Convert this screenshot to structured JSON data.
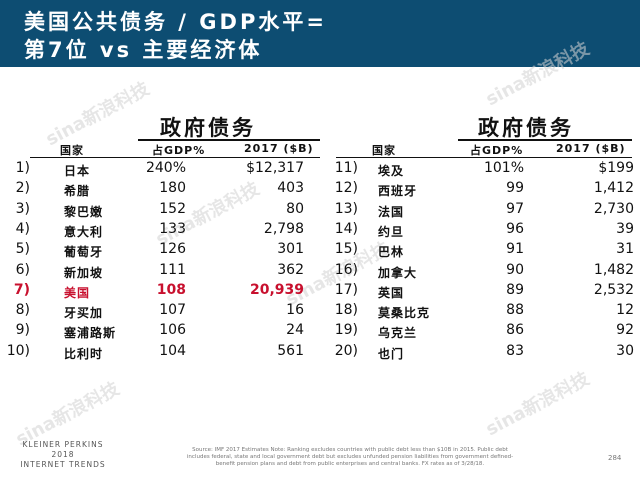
{
  "header": {
    "title_line1": "美国公共债务 / GDP水平=",
    "title_line2": "第7位 vs 主要经济体"
  },
  "section_title": "政府债务",
  "columns": {
    "country": "国家",
    "pct": "占GDP%",
    "debt": "2017 ($B)"
  },
  "left": [
    {
      "rank": "1)",
      "country": "日本",
      "pct": "240%",
      "debt": "$12,317"
    },
    {
      "rank": "2)",
      "country": "希腊",
      "pct": "180",
      "debt": "403"
    },
    {
      "rank": "3)",
      "country": "黎巴嫩",
      "pct": "152",
      "debt": "80"
    },
    {
      "rank": "4)",
      "country": "意大利",
      "pct": "133",
      "debt": "2,798"
    },
    {
      "rank": "5)",
      "country": "葡萄牙",
      "pct": "126",
      "debt": "301"
    },
    {
      "rank": "6)",
      "country": "新加坡",
      "pct": "111",
      "debt": "362"
    },
    {
      "rank": "7)",
      "country": "美国",
      "pct": "108",
      "debt": "20,939",
      "highlight": true
    },
    {
      "rank": "8)",
      "country": "牙买加",
      "pct": "107",
      "debt": "16"
    },
    {
      "rank": "9)",
      "country": "塞浦路斯",
      "pct": "106",
      "debt": "24"
    },
    {
      "rank": "10)",
      "country": "比利时",
      "pct": "104",
      "debt": "561"
    }
  ],
  "right": [
    {
      "rank": "11)",
      "country": "埃及",
      "pct": "101%",
      "debt": "$199"
    },
    {
      "rank": "12)",
      "country": "西班牙",
      "pct": "99",
      "debt": "1,412"
    },
    {
      "rank": "13)",
      "country": "法国",
      "pct": "97",
      "debt": "2,730"
    },
    {
      "rank": "14)",
      "country": "约旦",
      "pct": "96",
      "debt": "39"
    },
    {
      "rank": "15)",
      "country": "巴林",
      "pct": "91",
      "debt": "31"
    },
    {
      "rank": "16)",
      "country": "加拿大",
      "pct": "90",
      "debt": "1,482"
    },
    {
      "rank": "17)",
      "country": "英国",
      "pct": "89",
      "debt": "2,532"
    },
    {
      "rank": "18)",
      "country": "莫桑比克",
      "pct": "88",
      "debt": "12"
    },
    {
      "rank": "19)",
      "country": "乌克兰",
      "pct": "86",
      "debt": "92"
    },
    {
      "rank": "20)",
      "country": "也门",
      "pct": "83",
      "debt": "30"
    }
  ],
  "watermark": "sina新浪科技",
  "footer": {
    "logo_line1": "KLEINER PERKINS",
    "logo_line2": "2018",
    "logo_line3": "INTERNET TRENDS",
    "source": "Source: IMF 2017 Estimates Note: Ranking excludes countries with public debt less than $10B in 2015. Public debt includes federal, state and local government debt but excludes unfunded pension liabilities from government defined-benefit pension plans and debt from public enterprises and central banks. FX rates as of 3/28/18.",
    "page": "284"
  },
  "colors": {
    "header_bg": "#0d4d72",
    "highlight": "#c8102e"
  }
}
